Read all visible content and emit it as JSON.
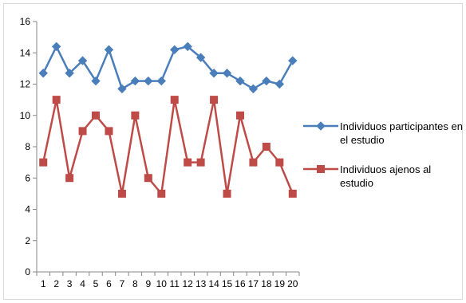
{
  "chart_data": {
    "type": "line",
    "title": "",
    "xlabel": "",
    "ylabel": "",
    "categories": [
      "1",
      "2",
      "3",
      "4",
      "5",
      "6",
      "7",
      "8",
      "9",
      "10",
      "11",
      "12",
      "13",
      "14",
      "15",
      "16",
      "17",
      "18",
      "19",
      "20"
    ],
    "ylim": [
      0,
      16
    ],
    "yticks": [
      0,
      2,
      4,
      6,
      8,
      10,
      12,
      14,
      16
    ],
    "grid": false,
    "legend_position": "right",
    "series": [
      {
        "name": "Individuos participantes en el estudio",
        "legend_lines": [
          "Individuos participantes en",
          "el estudio"
        ],
        "color": "#4a7ebb",
        "marker": "diamond",
        "values": [
          12.7,
          14.4,
          12.7,
          13.5,
          12.2,
          14.2,
          11.7,
          12.2,
          12.2,
          12.2,
          14.2,
          14.4,
          13.7,
          12.7,
          12.7,
          12.2,
          11.7,
          12.2,
          12.0,
          13.5
        ]
      },
      {
        "name": "Individuos ajenos al estudio",
        "legend_lines": [
          "Individuos ajenos al",
          "estudio"
        ],
        "color": "#be4b48",
        "marker": "square",
        "values": [
          7,
          11,
          6,
          9,
          10,
          9,
          5,
          10,
          6,
          5,
          11,
          7,
          7,
          11,
          5,
          10,
          7,
          8,
          7,
          5
        ]
      }
    ]
  }
}
